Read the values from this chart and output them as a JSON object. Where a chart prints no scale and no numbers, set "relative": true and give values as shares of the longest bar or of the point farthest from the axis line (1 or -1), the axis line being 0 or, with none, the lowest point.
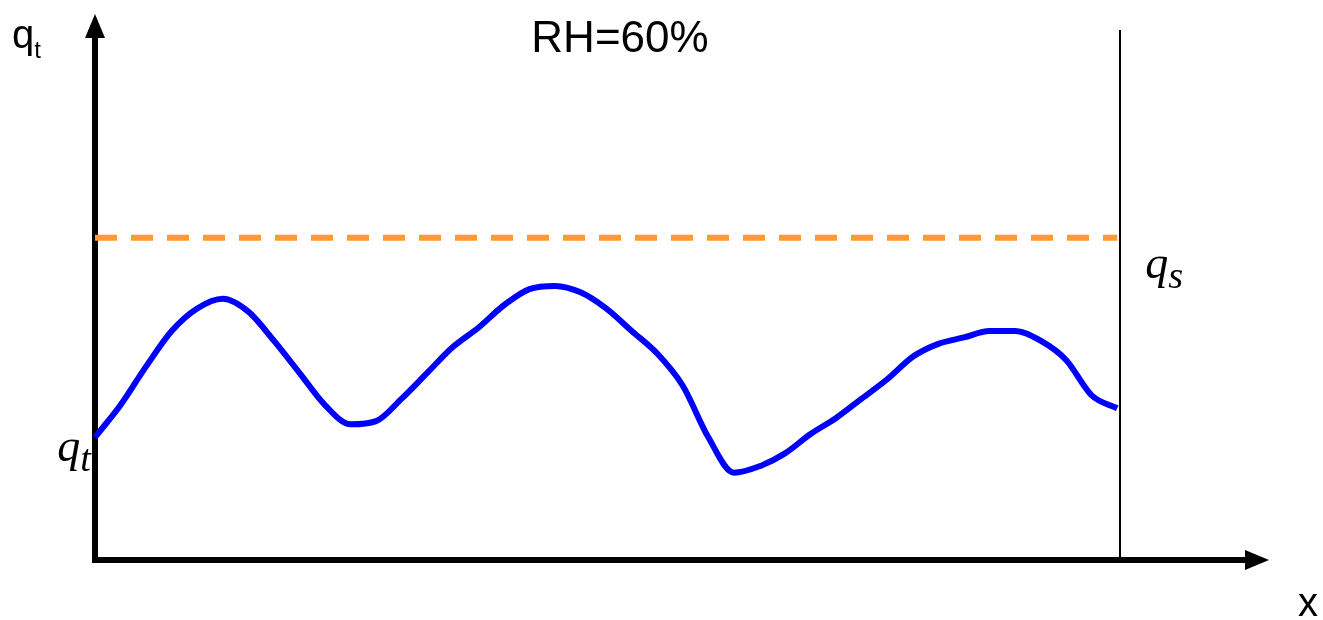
{
  "chart_data": {
    "type": "line",
    "title": "RH=60%",
    "xlabel": "x",
    "ylabel": "q$_{t}$",
    "relative": true,
    "grid": false,
    "legend": false,
    "marker": "none",
    "categories": [
      null,
      null,
      null,
      null,
      null,
      null,
      null,
      null,
      null,
      null,
      null,
      null,
      null,
      null,
      null,
      null,
      null,
      null,
      null,
      null,
      null,
      null,
      null,
      null,
      null,
      null,
      null,
      null,
      null,
      null,
      null,
      null,
      null,
      null,
      null,
      null,
      null,
      null,
      null,
      null,
      null,
      null,
      null,
      null,
      null,
      null
    ],
    "series": [
      {
        "name": "q$_{t}$",
        "color": "#0000ff",
        "line_style": "solid",
        "values": [
          0.38,
          0.48,
          0.6,
          0.71,
          0.78,
          0.81,
          0.77,
          0.68,
          0.58,
          0.48,
          0.42,
          0.43,
          0.5,
          0.58,
          0.66,
          0.72,
          0.79,
          0.84,
          0.85,
          0.83,
          0.78,
          0.71,
          0.64,
          0.54,
          0.38,
          0.27,
          0.29,
          0.33,
          0.39,
          0.44,
          0.5,
          0.56,
          0.63,
          0.67,
          0.69,
          0.71,
          0.71,
          0.68,
          0.62,
          0.51,
          0.47,
          null,
          null,
          null,
          null,
          null
        ]
      },
      {
        "name": "q$_{s}$",
        "color": "#ff9933",
        "line_style": "dashed",
        "values": [
          1,
          1,
          1,
          1,
          1,
          1,
          1,
          1,
          1,
          1,
          1,
          1,
          1,
          1,
          1,
          1,
          1,
          1,
          1,
          1,
          1,
          1,
          1,
          1,
          1,
          1,
          1,
          1,
          1,
          1,
          1,
          1,
          1,
          1,
          1,
          1,
          1,
          1,
          1,
          1,
          1,
          null,
          null,
          null,
          null,
          null
        ]
      }
    ]
  }
}
